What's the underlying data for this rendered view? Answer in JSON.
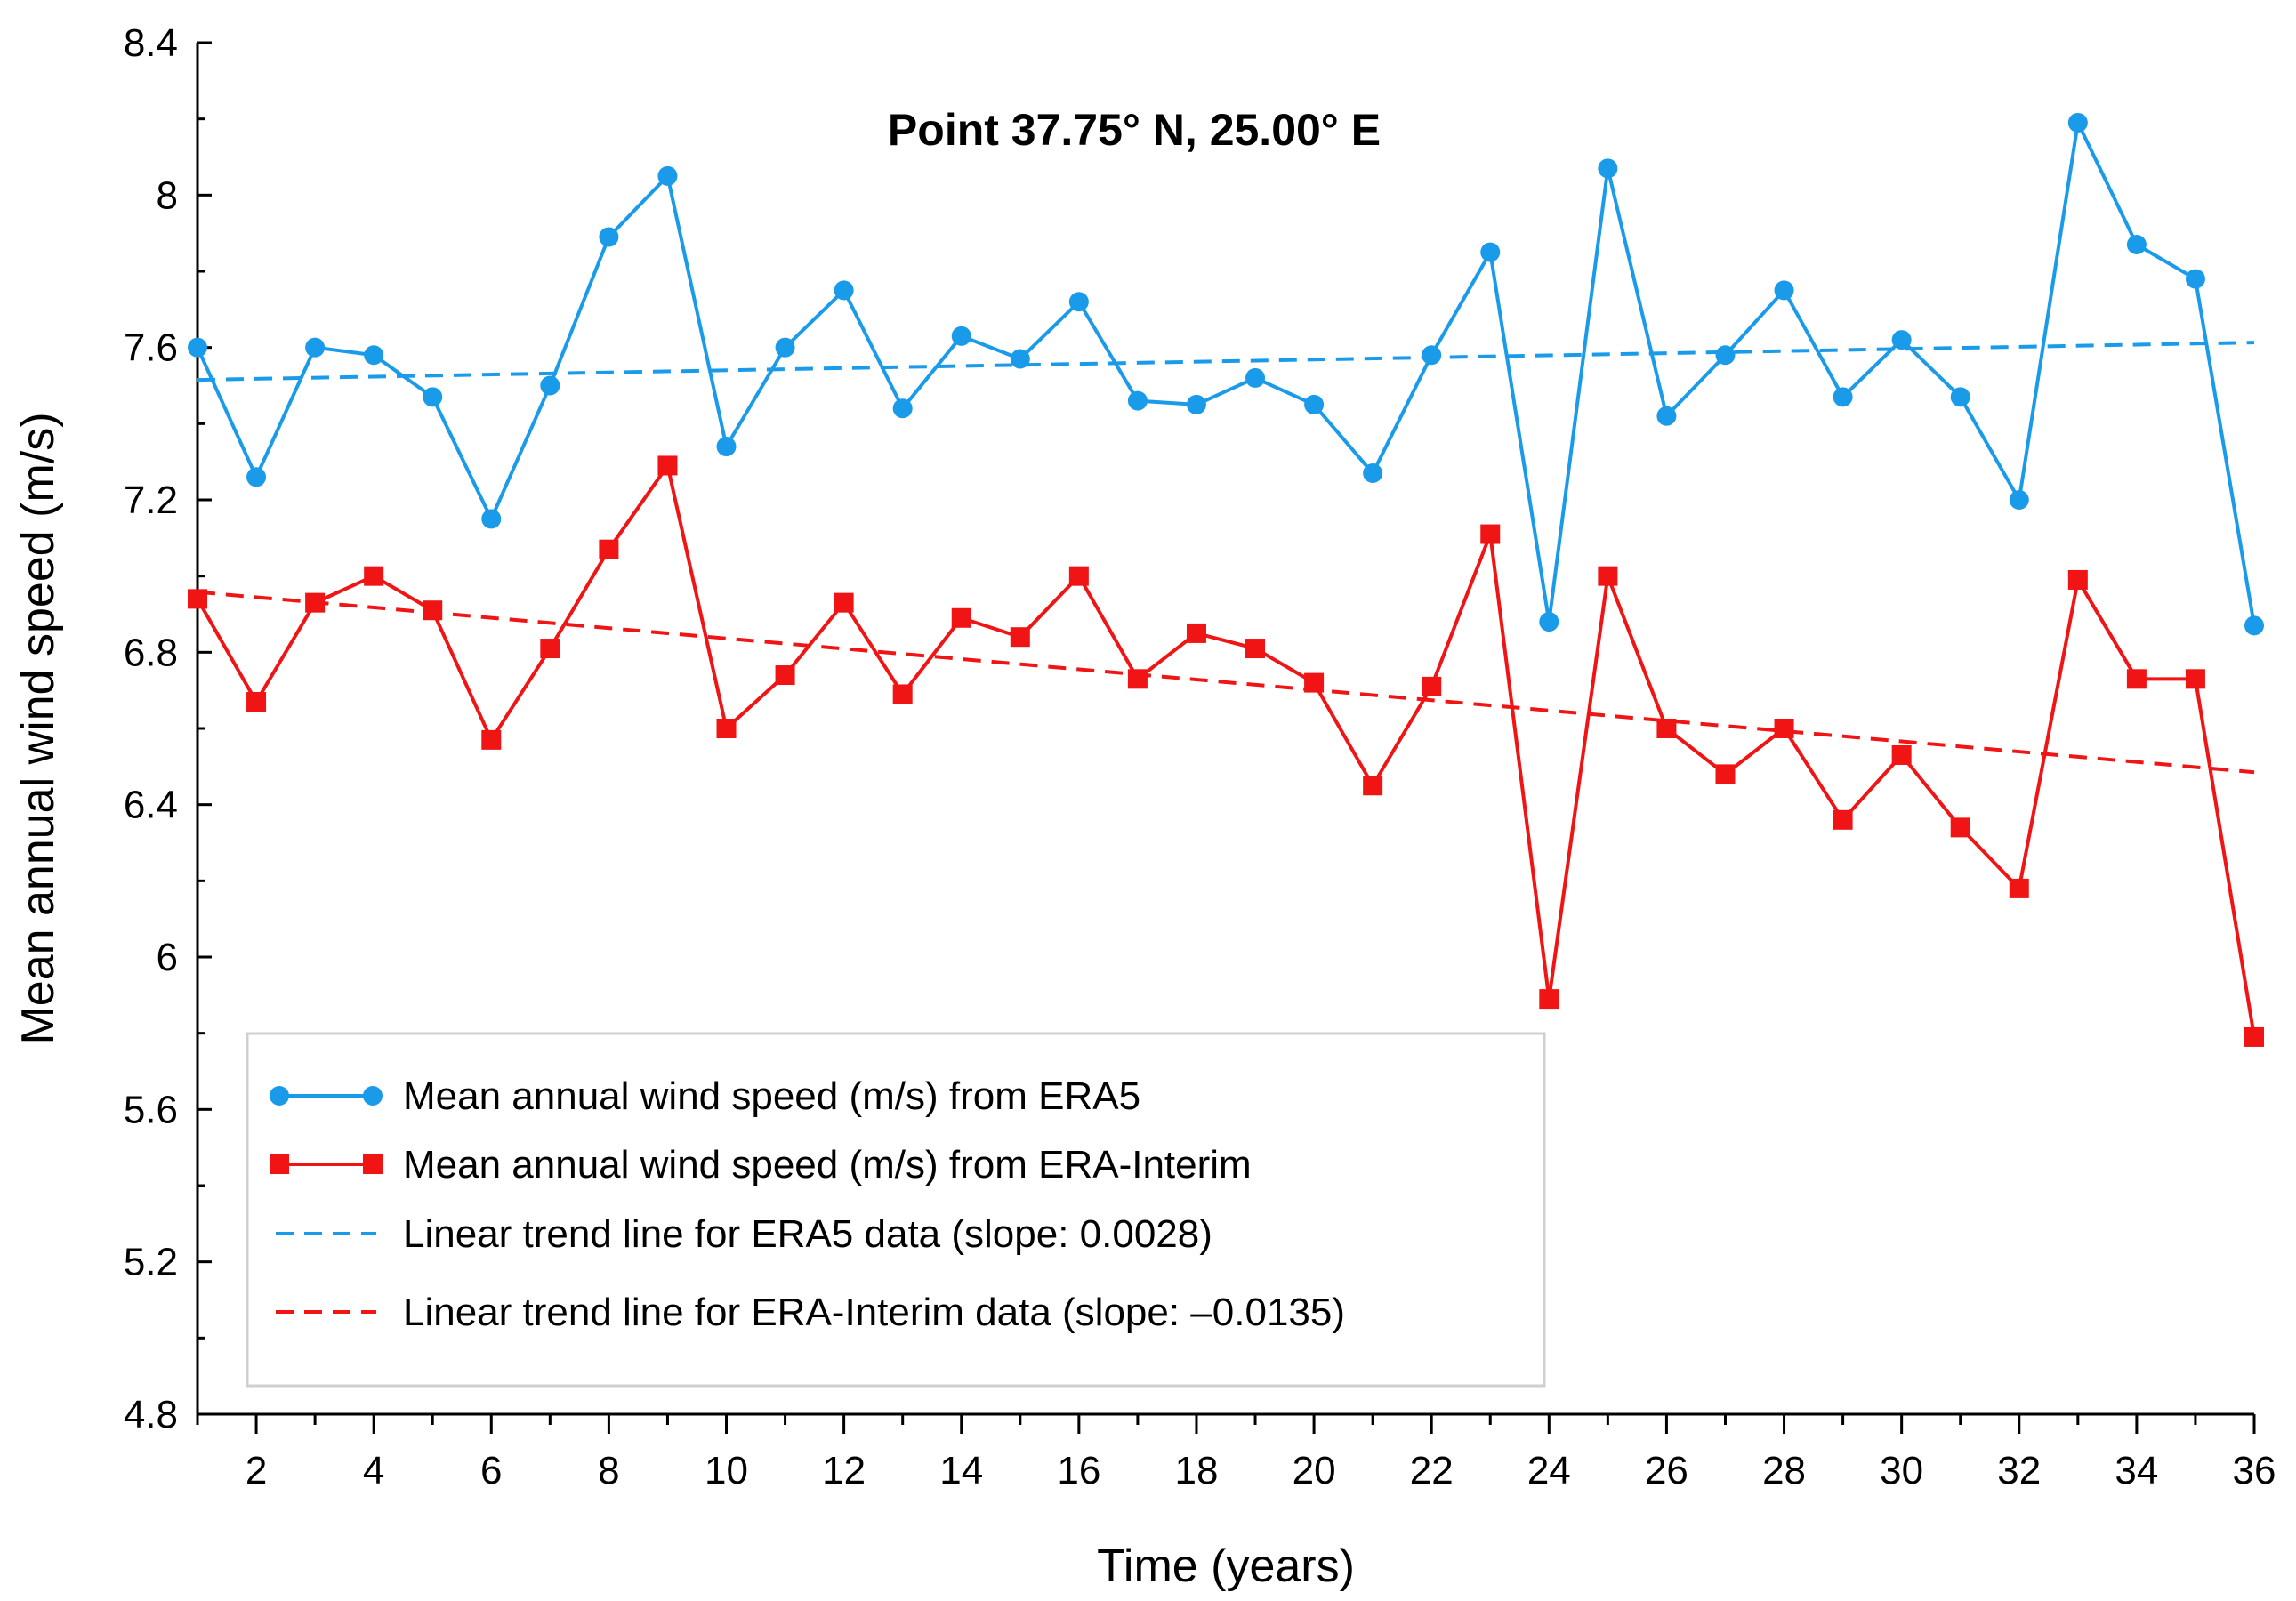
{
  "chart_data": {
    "type": "line",
    "title": "Point 37.75° N, 25.00° E",
    "xlabel": "Time (years)",
    "ylabel": "Mean annual wind speed (m/s)",
    "xlim": [
      1,
      36
    ],
    "ylim": [
      4.8,
      8.4
    ],
    "x_ticks": [
      2,
      4,
      6,
      8,
      10,
      12,
      14,
      16,
      18,
      20,
      22,
      24,
      26,
      28,
      30,
      32,
      34,
      36
    ],
    "y_ticks": [
      4.8,
      5.2,
      5.6,
      6,
      6.4,
      6.8,
      7.2,
      7.6,
      8,
      8.4
    ],
    "y_tick_labels": [
      "4.8",
      "5.2",
      "5.6",
      "6",
      "6.4",
      "6.8",
      "7.2",
      "7.6",
      "8",
      "8.4"
    ],
    "x": [
      1,
      2,
      3,
      4,
      5,
      6,
      7,
      8,
      9,
      10,
      11,
      12,
      13,
      14,
      15,
      16,
      17,
      18,
      19,
      20,
      21,
      22,
      23,
      24,
      25,
      26,
      27,
      28,
      29,
      30,
      31,
      32,
      33,
      34,
      35,
      36
    ],
    "series": [
      {
        "name": "Mean annual wind speed (m/s) from ERA5",
        "color": "#1a9bea",
        "marker": "circle",
        "values": [
          7.6,
          7.26,
          7.6,
          7.58,
          7.47,
          7.15,
          7.5,
          7.89,
          8.05,
          7.34,
          7.6,
          7.75,
          7.44,
          7.63,
          7.57,
          7.72,
          7.46,
          7.45,
          7.52,
          7.45,
          7.27,
          7.58,
          7.85,
          6.88,
          8.07,
          7.42,
          7.58,
          7.75,
          7.47,
          7.62,
          7.47,
          7.2,
          8.19,
          7.87,
          7.78,
          6.87
        ]
      },
      {
        "name": "Mean annual wind speed (m/s) from ERA-Interim",
        "color": "#f01414",
        "marker": "square",
        "values": [
          6.94,
          6.67,
          6.93,
          7.0,
          6.91,
          6.57,
          6.81,
          7.07,
          7.29,
          6.6,
          6.74,
          6.93,
          6.69,
          6.89,
          6.84,
          7.0,
          6.73,
          6.85,
          6.81,
          6.72,
          6.45,
          6.71,
          7.11,
          5.89,
          7.0,
          6.6,
          6.48,
          6.6,
          6.36,
          6.53,
          6.34,
          6.18,
          6.99,
          6.73,
          6.73,
          5.79
        ]
      }
    ],
    "trend_lines": [
      {
        "name": "Linear trend line for ERA5 data (slope: 0.0028)",
        "color": "#1a9bea",
        "style": "dashed",
        "x": [
          1,
          36
        ],
        "y": [
          7.515,
          7.613
        ]
      },
      {
        "name": "Linear trend line for ERA-Interim data (slope: –0.0135)",
        "color": "#f01414",
        "style": "dashed",
        "x": [
          1,
          36
        ],
        "y": [
          6.958,
          6.485
        ]
      }
    ],
    "legend": "bottom-left"
  }
}
